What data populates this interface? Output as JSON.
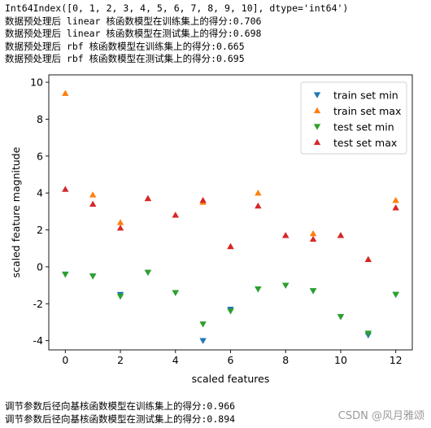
{
  "output_top": [
    "Int64Index([0, 1, 2, 3, 4, 5, 6, 7, 8, 9, 10], dtype='int64')",
    "数据预处理后 linear 核函数模型在训练集上的得分:0.706",
    "数据预处理后 linear 核函数模型在测试集上的得分:0.698",
    "数据预处理后 rbf 核函数模型在训练集上的得分:0.665",
    "数据预处理后 rbf 核函数模型在测试集上的得分:0.695"
  ],
  "output_bottom": [
    "调节参数后径向基核函数模型在训练集上的得分:0.966",
    "调节参数后径向基核函数模型在测试集上的得分:0.894"
  ],
  "watermark": "CSDN @风月雅颂",
  "chart_data": {
    "type": "scatter",
    "xlabel": "scaled features",
    "ylabel": "scaled feature magnitude",
    "xlim": [
      -0.6,
      12.6
    ],
    "ylim": [
      -4.5,
      10.4
    ],
    "xticks": [
      0,
      2,
      4,
      6,
      8,
      10,
      12
    ],
    "yticks": [
      -4,
      -2,
      0,
      2,
      4,
      6,
      8,
      10
    ],
    "grid": false,
    "legend_position": "top-right",
    "series": [
      {
        "name": "train set min",
        "marker": "triangle-down",
        "color": "#1f77b4",
        "x": [
          0,
          1,
          2,
          3,
          4,
          5,
          6,
          7,
          8,
          9,
          10,
          11,
          12
        ],
        "y": [
          -0.4,
          -0.5,
          -1.5,
          -0.3,
          -1.4,
          -4.0,
          -2.3,
          -1.2,
          -1.0,
          -1.3,
          -2.7,
          -3.7,
          -1.5
        ]
      },
      {
        "name": "train set max",
        "marker": "triangle-up",
        "color": "#ff7f0e",
        "x": [
          0,
          1,
          2,
          3,
          4,
          5,
          6,
          7,
          8,
          9,
          10,
          11,
          12
        ],
        "y": [
          9.4,
          3.9,
          2.4,
          3.7,
          2.8,
          3.5,
          1.1,
          4.0,
          1.7,
          1.8,
          1.7,
          0.4,
          3.6
        ]
      },
      {
        "name": "test set min",
        "marker": "triangle-down",
        "color": "#2ca02c",
        "x": [
          0,
          1,
          2,
          3,
          4,
          5,
          6,
          7,
          8,
          9,
          10,
          11,
          12
        ],
        "y": [
          -0.4,
          -0.5,
          -1.6,
          -0.3,
          -1.4,
          -3.1,
          -2.4,
          -1.2,
          -1.0,
          -1.3,
          -2.7,
          -3.6,
          -1.5
        ]
      },
      {
        "name": "test set max",
        "marker": "triangle-up",
        "color": "#d62728",
        "x": [
          0,
          1,
          2,
          3,
          4,
          5,
          6,
          7,
          8,
          9,
          10,
          11,
          12
        ],
        "y": [
          4.2,
          3.4,
          2.1,
          3.7,
          2.8,
          3.6,
          1.1,
          3.3,
          1.7,
          1.5,
          1.7,
          0.4,
          3.2
        ]
      }
    ]
  }
}
